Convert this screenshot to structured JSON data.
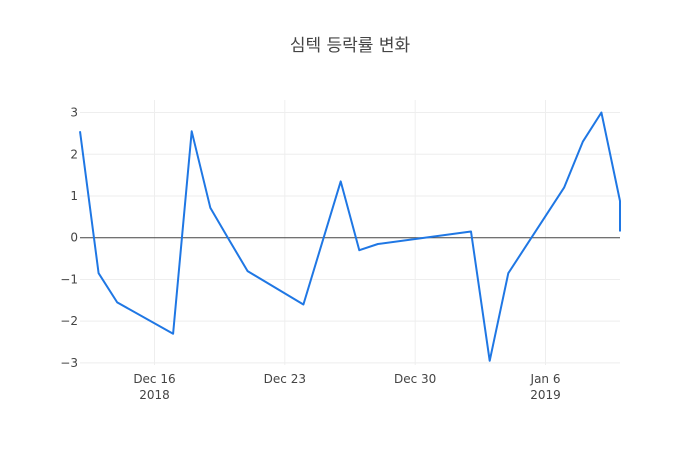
{
  "chart_data": {
    "type": "line",
    "title": "심텍 등락률 변화",
    "xlabel": "",
    "ylabel": "",
    "x": [
      "2018-12-12",
      "2018-12-13",
      "2018-12-14",
      "2018-12-17",
      "2018-12-18",
      "2018-12-19",
      "2018-12-20",
      "2018-12-21",
      "2018-12-24",
      "2018-12-26",
      "2018-12-27",
      "2018-12-28",
      "2019-01-02",
      "2019-01-03",
      "2019-01-04",
      "2019-01-07",
      "2019-01-08",
      "2019-01-09",
      "2019-01-10",
      "2019-01-11"
    ],
    "series": [
      {
        "name": "",
        "values": [
          2.55,
          -0.85,
          -1.55,
          -2.3,
          2.55,
          0.72,
          -0.05,
          -0.8,
          -1.6,
          1.35,
          -0.3,
          -0.15,
          0.15,
          -2.95,
          -0.85,
          1.2,
          2.3,
          3.0,
          0.88,
          0.15
        ]
      }
    ],
    "ylim": [
      -3.05,
      3.3
    ],
    "yticks": [
      3,
      2,
      1,
      0,
      -1,
      -2,
      -3
    ],
    "ytick_labels": [
      "3",
      "2",
      "1",
      "0",
      "−1",
      "−2",
      "−3"
    ],
    "xlim": [
      "2018-12-12",
      "2019-01-10"
    ],
    "xticks": [
      {
        "date": "2018-12-16",
        "label": "Dec 16",
        "sublabel": "2018"
      },
      {
        "date": "2018-12-23",
        "label": "Dec 23",
        "sublabel": ""
      },
      {
        "date": "2018-12-30",
        "label": "Dec 30",
        "sublabel": ""
      },
      {
        "date": "2019-01-06",
        "label": "Jan 6",
        "sublabel": "2019"
      }
    ],
    "grid": true,
    "zero_line": true,
    "line_color": "#1f77e4",
    "grid_color": "#eeeeee",
    "zero_line_color": "#444444"
  }
}
